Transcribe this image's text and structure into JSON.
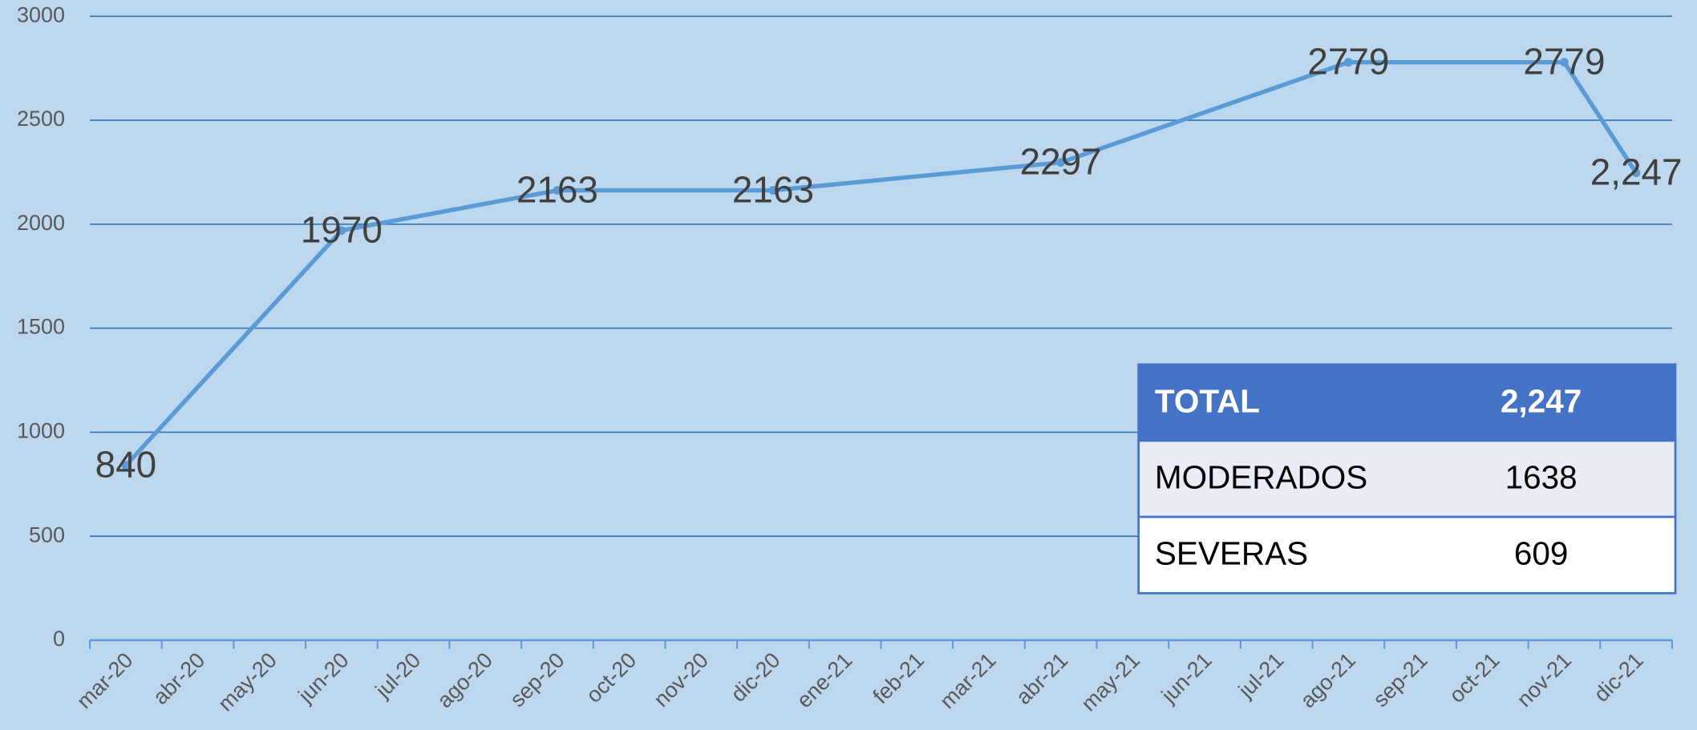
{
  "chart_data": {
    "type": "line",
    "categories": [
      "mar-20",
      "abr-20",
      "may-20",
      "jun-20",
      "jul-20",
      "ago-20",
      "sep-20",
      "oct-20",
      "nov-20",
      "dic-20",
      "ene-21",
      "feb-21",
      "mar-21",
      "abr-21",
      "may-21",
      "jun-21",
      "jul-21",
      "ago-21",
      "sep-21",
      "oct-21",
      "nov-21",
      "dic-21"
    ],
    "series": [
      {
        "color": "#5b9bd5",
        "x": [
          "mar-20",
          "jun-20",
          "sep-20",
          "dic-20",
          "abr-21",
          "ago-21",
          "nov-21",
          "dic-21"
        ],
        "values": [
          840,
          1970,
          2163,
          2163,
          2297,
          2779,
          2779,
          2247
        ],
        "value_labels": [
          "840",
          "1970",
          "2163",
          "2163",
          "2297",
          "2779",
          "2779",
          "2,247"
        ]
      }
    ],
    "ylim": [
      0,
      3000
    ],
    "yticks": [
      0,
      500,
      1000,
      1500,
      2000,
      2500,
      3000
    ],
    "grid": true
  },
  "table": {
    "rows": [
      [
        "TOTAL",
        "2,247"
      ],
      [
        "MODERADOS",
        "1638"
      ],
      [
        "SEVERAS",
        "609"
      ]
    ]
  }
}
